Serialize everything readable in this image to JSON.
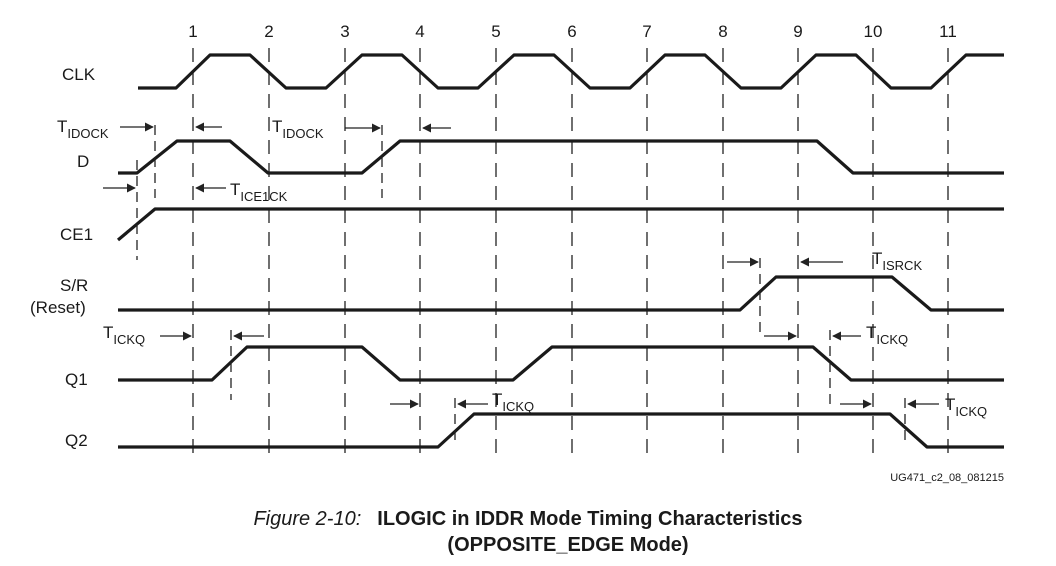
{
  "cycle_labels": [
    "1",
    "2",
    "3",
    "4",
    "5",
    "6",
    "7",
    "8",
    "9",
    "10",
    "11"
  ],
  "signals": [
    {
      "id": "clk",
      "label_lines": [
        "CLK"
      ]
    },
    {
      "id": "d",
      "label_lines": [
        "D"
      ]
    },
    {
      "id": "ce1",
      "label_lines": [
        "CE1"
      ]
    },
    {
      "id": "sr",
      "label_lines": [
        "S/R",
        "(Reset)"
      ]
    },
    {
      "id": "q1",
      "label_lines": [
        "Q1"
      ]
    },
    {
      "id": "q2",
      "label_lines": [
        "Q2"
      ]
    }
  ],
  "timing_labels": [
    {
      "id": "tidock-1",
      "base": "T",
      "sub": "IDOCK"
    },
    {
      "id": "tidock-2",
      "base": "T",
      "sub": "IDOCK"
    },
    {
      "id": "tice1ck",
      "base": "T",
      "sub": "ICE1CK"
    },
    {
      "id": "tisrck",
      "base": "T",
      "sub": "ISRCK"
    },
    {
      "id": "tickq-1",
      "base": "T",
      "sub": "ICKQ"
    },
    {
      "id": "tickq-2",
      "base": "T",
      "sub": "ICKQ"
    },
    {
      "id": "tickq-3",
      "base": "T",
      "sub": "ICKQ"
    },
    {
      "id": "tickq-4",
      "base": "T",
      "sub": "ICKQ"
    }
  ],
  "reference_id": "UG471_c2_08_081215",
  "caption": {
    "number": "Figure 2-10:",
    "title_line1": "ILOGIC in IDDR Mode Timing Characteristics",
    "title_line2": "(OPPOSITE_EDGE Mode)"
  }
}
